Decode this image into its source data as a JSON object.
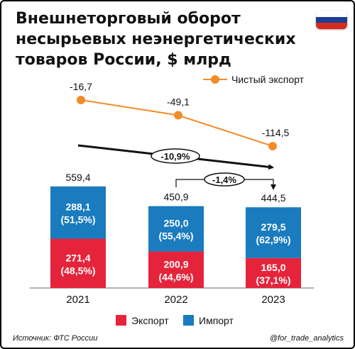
{
  "title_lines": [
    "Внешнеторговый оборот",
    "несырьевых неэнергетических",
    "товаров России, $ млрд"
  ],
  "flag": {
    "name": "russia-flag-icon",
    "stripes": [
      "#ffffff",
      "#1c3f94",
      "#d52b1e"
    ]
  },
  "source": "Источник: ФТС России",
  "handle": "@for_trade_analytics",
  "chart_data": {
    "type": "bar",
    "stacked": true,
    "categories": [
      "2021",
      "2022",
      "2023"
    ],
    "series": [
      {
        "name": "Экспорт",
        "values": [
          271.4,
          200.9,
          165.0
        ],
        "labels": [
          "271,4",
          "200,9",
          "165,0"
        ],
        "shares": [
          "(48,5%)",
          "(44,6%)",
          "(37,1%)"
        ],
        "color": "#e5243b"
      },
      {
        "name": "Импорт",
        "values": [
          288.1,
          250.0,
          279.5
        ],
        "labels": [
          "288,1",
          "250,0",
          "279,5"
        ],
        "shares": [
          "(51,5%)",
          "(55,4%)",
          "(62,9%)"
        ],
        "color": "#1a7bbf"
      }
    ],
    "totals": [
      "559,4",
      "450,9",
      "444,5"
    ],
    "line_series": {
      "name": "Чистый экспорт",
      "values": [
        -16.7,
        -49.1,
        -114.5
      ],
      "labels": [
        "-16,7",
        "-49,1",
        "-114,5"
      ],
      "color": "#f28c28"
    },
    "annotations": [
      {
        "text": "-10,9%",
        "from": "2021",
        "to": "2023"
      },
      {
        "text": "-1,4%",
        "from": "2022",
        "to": "2023"
      }
    ],
    "legend": {
      "position": "bottom"
    },
    "grid": false
  }
}
